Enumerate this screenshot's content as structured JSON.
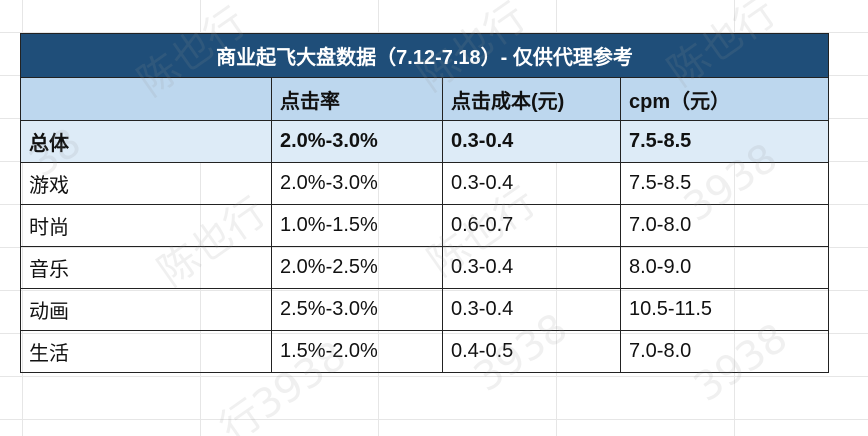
{
  "table": {
    "title": "商业起飞大盘数据（7.12-7.18）- 仅供代理参考",
    "headers": [
      "",
      "点击率",
      "点击成本(元)",
      "cpm（元）"
    ],
    "summary": {
      "label": "总体",
      "ctr": "2.0%-3.0%",
      "cpc": "0.3-0.4",
      "cpm": "7.5-8.5"
    },
    "rows": [
      {
        "label": "游戏",
        "ctr": "2.0%-3.0%",
        "cpc": "0.3-0.4",
        "cpm": "7.5-8.5"
      },
      {
        "label": "时尚",
        "ctr": "1.0%-1.5%",
        "cpc": "0.6-0.7",
        "cpm": "7.0-8.0"
      },
      {
        "label": "音乐",
        "ctr": "2.0%-2.5%",
        "cpc": "0.3-0.4",
        "cpm": "8.0-9.0"
      },
      {
        "label": "动画",
        "ctr": "2.5%-3.0%",
        "cpc": "0.3-0.4",
        "cpm": "10.5-11.5"
      },
      {
        "label": "生活",
        "ctr": "1.5%-2.0%",
        "cpc": "0.4-0.5",
        "cpm": "7.0-8.0"
      }
    ]
  },
  "colors": {
    "title_bg": "#1f4e79",
    "header_bg": "#bdd7ee",
    "summary_bg": "#ddebf7"
  }
}
